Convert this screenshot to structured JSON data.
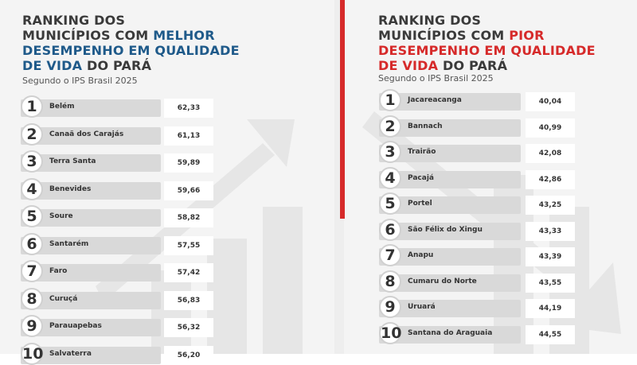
{
  "left": {
    "title": {
      "lead1": "RANKING DOS",
      "lead2": "MUNICÍPIOS COM",
      "hl1": "MELHOR",
      "hl2": "DESEMPENHO EM QUALIDADE",
      "hl3": "DE VIDA",
      "tail": "DO PARÁ"
    },
    "subtitle": "Segundo o IPS Brasil 2025",
    "rows": [
      [
        "1",
        "Belém",
        "62,33"
      ],
      [
        "2",
        "Canaã dos Carajás",
        "61,13"
      ],
      [
        "3",
        "Terra Santa",
        "59,89"
      ],
      [
        "4",
        "Benevides",
        "59,66"
      ],
      [
        "5",
        "Soure",
        "58,82"
      ],
      [
        "6",
        "Santarém",
        "57,55"
      ],
      [
        "7",
        "Faro",
        "57,42"
      ],
      [
        "8",
        "Curuçá",
        "56,83"
      ],
      [
        "9",
        "Parauapebas",
        "56,32"
      ],
      [
        "10",
        "Salvaterra",
        "56,20"
      ]
    ]
  },
  "right": {
    "title": {
      "lead1": "RANKING DOS",
      "lead2": "MUNICÍPIOS COM",
      "hl1": "PIOR",
      "hl2": "DESEMPENHO EM QUALIDADE",
      "hl3": "DE VIDA",
      "tail": "DO PARÁ"
    },
    "subtitle": "Segundo o IPS Brasil 2025",
    "rows": [
      [
        "1",
        "Jacareacanga",
        "40,04"
      ],
      [
        "2",
        "Bannach",
        "40,99"
      ],
      [
        "3",
        "Trairão",
        "42,08"
      ],
      [
        "4",
        "Pacajá",
        "42,86"
      ],
      [
        "5",
        "Portel",
        "43,25"
      ],
      [
        "6",
        "São Félix do Xingu",
        "43,33"
      ],
      [
        "7",
        "Anapu",
        "43,39"
      ],
      [
        "8",
        "Cumaru do Norte",
        "43,55"
      ],
      [
        "9",
        "Uruará",
        "44,19"
      ],
      [
        "10",
        "Santana do Araguaia",
        "44,55"
      ]
    ]
  }
}
